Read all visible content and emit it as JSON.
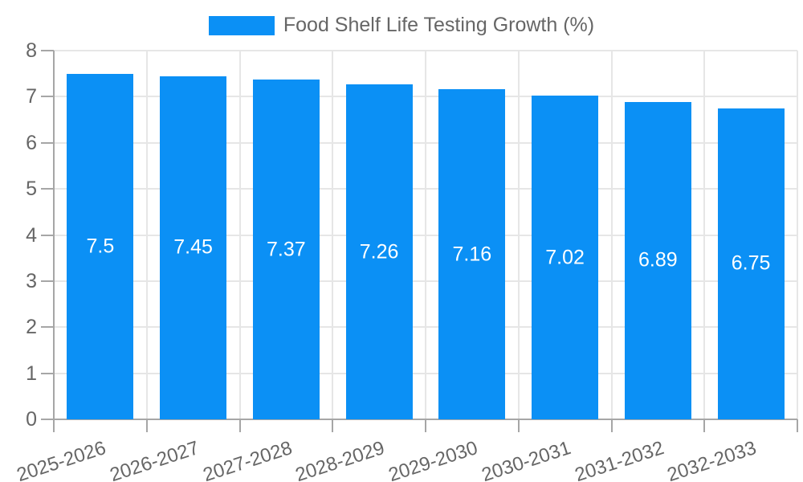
{
  "legend": {
    "label": "Food Shelf Life Testing Growth (%)"
  },
  "colors": {
    "bar": "#0b90f5",
    "grid": "#e6e6e6",
    "axis": "#a6a6a6",
    "tick": "#a6a6a6",
    "tick_text": "#666666",
    "legend_text": "#666666",
    "value_label": "#ffffff"
  },
  "chart_data": {
    "type": "bar",
    "title": "Food Shelf Life Testing Growth (%)",
    "categories": [
      "2025-2026",
      "2026-2027",
      "2027-2028",
      "2028-2029",
      "2029-2030",
      "2030-2031",
      "2031-2032",
      "2032-2033"
    ],
    "values": [
      7.5,
      7.45,
      7.37,
      7.26,
      7.16,
      7.02,
      6.89,
      6.75
    ],
    "value_labels": [
      "7.5",
      "7.45",
      "7.37",
      "7.26",
      "7.16",
      "7.02",
      "6.89",
      "6.75"
    ],
    "xlabel": "",
    "ylabel": "",
    "ylim": [
      0,
      8
    ],
    "yticks": [
      0,
      1,
      2,
      3,
      4,
      5,
      6,
      7,
      8
    ],
    "grid": true,
    "legend_position": "top",
    "value_label_position": "inside-center",
    "xtick_rotation_deg": -18
  }
}
